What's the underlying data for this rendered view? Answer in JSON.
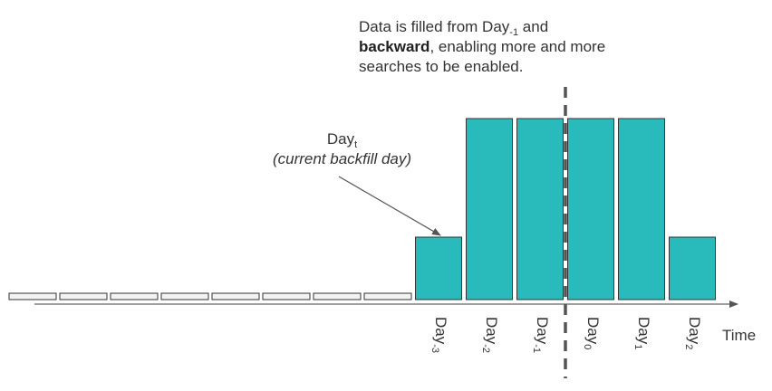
{
  "annotations": {
    "filled_from": {
      "text_before": "Data is filled from Day",
      "sub": "-1",
      "text_after": " and",
      "bold": "backward",
      "rest": ", enabling more and more searches to be enabled."
    },
    "current_day": {
      "base": "Day",
      "sub": "t",
      "caption": "(current backfill day)"
    }
  },
  "x_axis_label": "Time",
  "day_labels": [
    {
      "base": "Day",
      "sub": "-3"
    },
    {
      "base": "Day",
      "sub": "-2"
    },
    {
      "base": "Day",
      "sub": "-1"
    },
    {
      "base": "Day",
      "sub": "0"
    },
    {
      "base": "Day",
      "sub": "1"
    },
    {
      "base": "Day",
      "sub": "2"
    }
  ],
  "bars": [
    {
      "state": "empty"
    },
    {
      "state": "empty"
    },
    {
      "state": "empty"
    },
    {
      "state": "empty"
    },
    {
      "state": "empty"
    },
    {
      "state": "empty"
    },
    {
      "state": "empty"
    },
    {
      "state": "empty"
    },
    {
      "state": "partial",
      "day": "-3"
    },
    {
      "state": "full",
      "day": "-2"
    },
    {
      "state": "full",
      "day": "-1"
    },
    {
      "state": "full",
      "day": "0"
    },
    {
      "state": "full",
      "day": "1"
    },
    {
      "state": "partial",
      "day": "2"
    }
  ],
  "colors": {
    "fill": "#29bbbb",
    "empty": "#f3f3f3",
    "outline": "#333333",
    "divider": "#555555"
  }
}
